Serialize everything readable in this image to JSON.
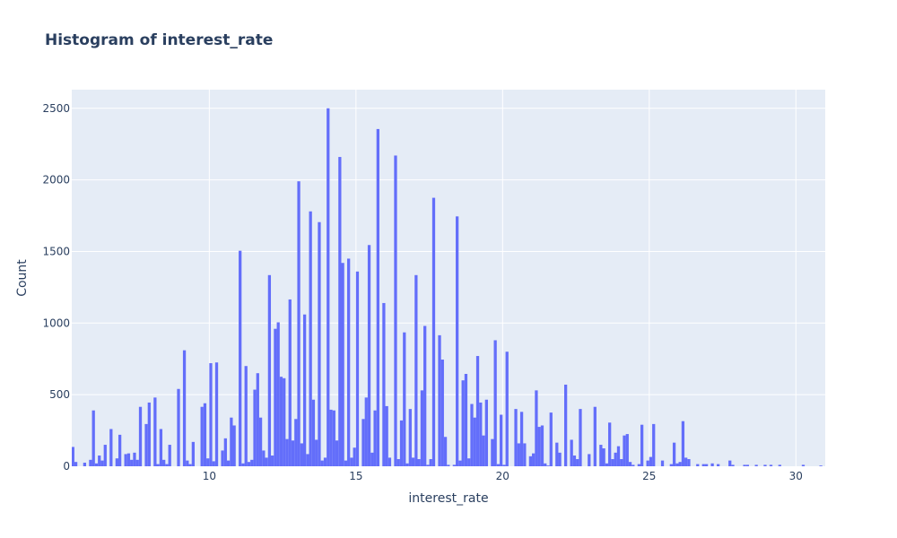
{
  "chart_data": {
    "type": "bar",
    "title": "Histogram of interest_rate",
    "xlabel": "interest_rate",
    "ylabel": "Count",
    "xlim": [
      5.31,
      31.0
    ],
    "ylim": [
      0,
      2630
    ],
    "x_ticks": [
      10,
      15,
      20,
      25,
      30
    ],
    "y_ticks": [
      0,
      500,
      1000,
      1500,
      2000,
      2500
    ],
    "grid": true,
    "bar_color": "#636efa",
    "plot_bg": "#e5ecf6",
    "bin_width": 0.1,
    "bins": [
      [
        5.35,
        135
      ],
      [
        5.45,
        30
      ],
      [
        5.75,
        25
      ],
      [
        5.95,
        45
      ],
      [
        6.05,
        390
      ],
      [
        6.15,
        20
      ],
      [
        6.25,
        75
      ],
      [
        6.35,
        40
      ],
      [
        6.45,
        150
      ],
      [
        6.65,
        260
      ],
      [
        6.85,
        55
      ],
      [
        6.95,
        220
      ],
      [
        7.15,
        85
      ],
      [
        7.25,
        90
      ],
      [
        7.35,
        45
      ],
      [
        7.45,
        95
      ],
      [
        7.55,
        45
      ],
      [
        7.65,
        415
      ],
      [
        7.85,
        295
      ],
      [
        7.95,
        445
      ],
      [
        8.15,
        480
      ],
      [
        8.25,
        15
      ],
      [
        8.35,
        260
      ],
      [
        8.45,
        45
      ],
      [
        8.55,
        15
      ],
      [
        8.65,
        150
      ],
      [
        8.95,
        540
      ],
      [
        9.15,
        810
      ],
      [
        9.25,
        40
      ],
      [
        9.35,
        15
      ],
      [
        9.45,
        170
      ],
      [
        9.75,
        415
      ],
      [
        9.85,
        440
      ],
      [
        9.95,
        55
      ],
      [
        10.05,
        720
      ],
      [
        10.15,
        35
      ],
      [
        10.25,
        725
      ],
      [
        10.45,
        110
      ],
      [
        10.55,
        195
      ],
      [
        10.65,
        40
      ],
      [
        10.75,
        340
      ],
      [
        10.85,
        285
      ],
      [
        11.05,
        1505
      ],
      [
        11.15,
        20
      ],
      [
        11.25,
        700
      ],
      [
        11.35,
        30
      ],
      [
        11.45,
        45
      ],
      [
        11.55,
        535
      ],
      [
        11.65,
        650
      ],
      [
        11.75,
        340
      ],
      [
        11.85,
        110
      ],
      [
        11.95,
        60
      ],
      [
        12.05,
        1335
      ],
      [
        12.15,
        75
      ],
      [
        12.25,
        960
      ],
      [
        12.35,
        1005
      ],
      [
        12.45,
        625
      ],
      [
        12.55,
        615
      ],
      [
        12.65,
        190
      ],
      [
        12.75,
        1165
      ],
      [
        12.85,
        180
      ],
      [
        12.95,
        330
      ],
      [
        13.05,
        1990
      ],
      [
        13.15,
        160
      ],
      [
        13.25,
        1060
      ],
      [
        13.35,
        85
      ],
      [
        13.45,
        1780
      ],
      [
        13.55,
        465
      ],
      [
        13.65,
        185
      ],
      [
        13.75,
        1705
      ],
      [
        13.85,
        40
      ],
      [
        13.95,
        60
      ],
      [
        14.05,
        2500
      ],
      [
        14.15,
        395
      ],
      [
        14.25,
        390
      ],
      [
        14.35,
        180
      ],
      [
        14.45,
        2160
      ],
      [
        14.55,
        1420
      ],
      [
        14.65,
        40
      ],
      [
        14.75,
        1450
      ],
      [
        14.85,
        60
      ],
      [
        14.95,
        130
      ],
      [
        15.05,
        1360
      ],
      [
        15.25,
        330
      ],
      [
        15.35,
        480
      ],
      [
        15.45,
        1545
      ],
      [
        15.55,
        95
      ],
      [
        15.65,
        390
      ],
      [
        15.75,
        2355
      ],
      [
        15.95,
        1140
      ],
      [
        16.05,
        420
      ],
      [
        16.15,
        60
      ],
      [
        16.35,
        2170
      ],
      [
        16.45,
        50
      ],
      [
        16.55,
        320
      ],
      [
        16.65,
        935
      ],
      [
        16.75,
        20
      ],
      [
        16.85,
        400
      ],
      [
        16.95,
        60
      ],
      [
        17.05,
        1335
      ],
      [
        17.15,
        50
      ],
      [
        17.25,
        530
      ],
      [
        17.35,
        980
      ],
      [
        17.45,
        10
      ],
      [
        17.55,
        50
      ],
      [
        17.65,
        1875
      ],
      [
        17.85,
        915
      ],
      [
        17.95,
        745
      ],
      [
        18.05,
        205
      ],
      [
        18.15,
        10
      ],
      [
        18.35,
        10
      ],
      [
        18.45,
        1745
      ],
      [
        18.55,
        40
      ],
      [
        18.65,
        600
      ],
      [
        18.75,
        645
      ],
      [
        18.85,
        55
      ],
      [
        18.95,
        435
      ],
      [
        19.05,
        340
      ],
      [
        19.15,
        770
      ],
      [
        19.25,
        445
      ],
      [
        19.35,
        215
      ],
      [
        19.45,
        465
      ],
      [
        19.65,
        190
      ],
      [
        19.75,
        880
      ],
      [
        19.85,
        15
      ],
      [
        19.95,
        360
      ],
      [
        20.05,
        10
      ],
      [
        20.15,
        800
      ],
      [
        20.45,
        400
      ],
      [
        20.55,
        160
      ],
      [
        20.65,
        380
      ],
      [
        20.75,
        160
      ],
      [
        20.95,
        70
      ],
      [
        21.05,
        90
      ],
      [
        21.15,
        530
      ],
      [
        21.25,
        275
      ],
      [
        21.35,
        285
      ],
      [
        21.45,
        20
      ],
      [
        21.55,
        5
      ],
      [
        21.65,
        375
      ],
      [
        21.85,
        165
      ],
      [
        21.95,
        95
      ],
      [
        22.15,
        570
      ],
      [
        22.35,
        185
      ],
      [
        22.45,
        75
      ],
      [
        22.55,
        50
      ],
      [
        22.65,
        400
      ],
      [
        22.95,
        85
      ],
      [
        23.15,
        415
      ],
      [
        23.35,
        150
      ],
      [
        23.45,
        125
      ],
      [
        23.55,
        20
      ],
      [
        23.65,
        305
      ],
      [
        23.75,
        50
      ],
      [
        23.85,
        95
      ],
      [
        23.95,
        140
      ],
      [
        24.05,
        50
      ],
      [
        24.15,
        215
      ],
      [
        24.25,
        225
      ],
      [
        24.35,
        30
      ],
      [
        24.45,
        10
      ],
      [
        24.65,
        15
      ],
      [
        24.75,
        290
      ],
      [
        24.95,
        40
      ],
      [
        25.05,
        65
      ],
      [
        25.15,
        295
      ],
      [
        25.45,
        40
      ],
      [
        25.75,
        15
      ],
      [
        25.85,
        165
      ],
      [
        25.95,
        20
      ],
      [
        26.05,
        30
      ],
      [
        26.15,
        315
      ],
      [
        26.25,
        60
      ],
      [
        26.35,
        50
      ],
      [
        26.65,
        15
      ],
      [
        26.85,
        15
      ],
      [
        26.95,
        15
      ],
      [
        27.15,
        20
      ],
      [
        27.35,
        15
      ],
      [
        27.75,
        40
      ],
      [
        27.85,
        10
      ],
      [
        28.25,
        10
      ],
      [
        28.35,
        10
      ],
      [
        28.65,
        10
      ],
      [
        28.95,
        10
      ],
      [
        29.15,
        10
      ],
      [
        29.45,
        10
      ],
      [
        30.25,
        10
      ],
      [
        30.85,
        5
      ]
    ]
  }
}
